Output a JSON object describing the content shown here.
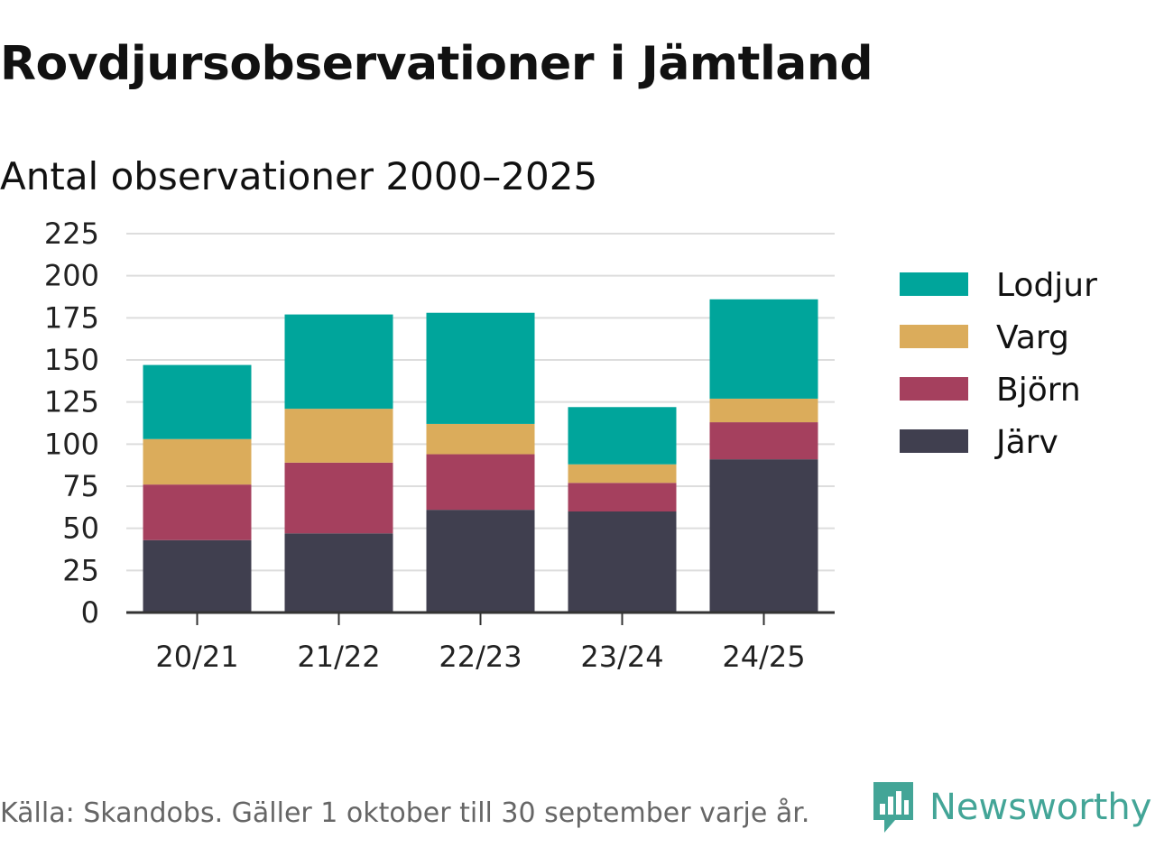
{
  "title": "Rovdjursobservationer i Jämtland",
  "subtitle": "Antal observationer 2000–2025",
  "footer": "Källa: Skandobs. Gäller 1 oktober till 30 september varje år.",
  "brand": "Newsworthy",
  "colors": {
    "Lodjur": "#00a59b",
    "Varg": "#dbac5b",
    "Björn": "#a5405e",
    "Järv": "#403f4f",
    "grid": "#dddddd",
    "axis": "#333333",
    "brand": "#43a597"
  },
  "chart_data": {
    "type": "bar",
    "stacked": true,
    "title": "Rovdjursobservationer i Jämtland",
    "subtitle": "Antal observationer 2000–2025",
    "xlabel": "",
    "ylabel": "",
    "categories": [
      "20/21",
      "21/22",
      "22/23",
      "23/24",
      "24/25"
    ],
    "series": [
      {
        "name": "Järv",
        "values": [
          43,
          47,
          61,
          60,
          91
        ]
      },
      {
        "name": "Björn",
        "values": [
          33,
          42,
          33,
          17,
          22
        ]
      },
      {
        "name": "Varg",
        "values": [
          27,
          32,
          18,
          11,
          14
        ]
      },
      {
        "name": "Lodjur",
        "values": [
          44,
          56,
          66,
          34,
          59
        ]
      }
    ],
    "legend_order": [
      "Lodjur",
      "Varg",
      "Björn",
      "Järv"
    ],
    "ylim": [
      0,
      225
    ],
    "yticks": [
      0,
      25,
      50,
      75,
      100,
      125,
      150,
      175,
      200,
      225
    ],
    "grid": true,
    "legend_position": "right"
  }
}
